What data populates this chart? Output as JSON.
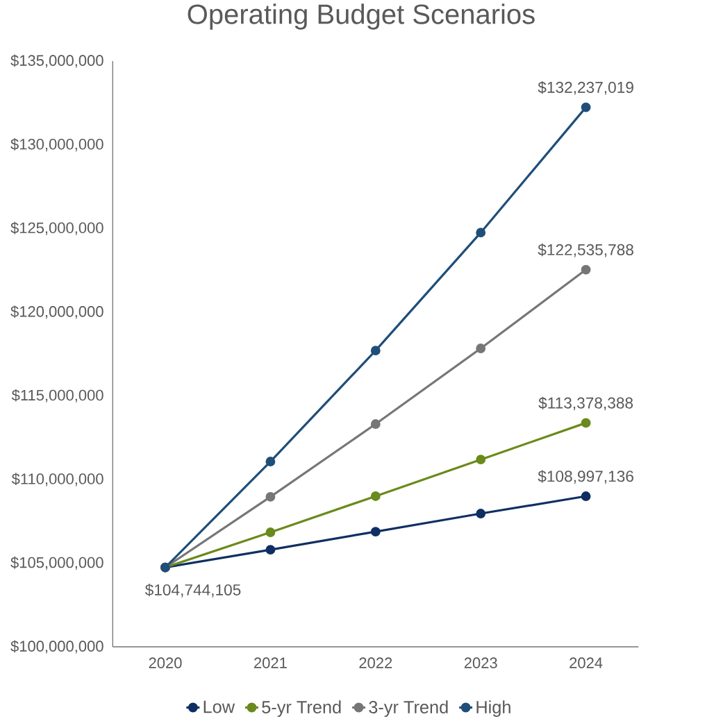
{
  "chart_data": {
    "type": "line",
    "title": "Operating Budget Scenarios",
    "categories": [
      "2020",
      "2021",
      "2022",
      "2023",
      "2024"
    ],
    "series": [
      {
        "name": "Low",
        "color": "#0f2f63",
        "values": [
          104744105,
          105800000,
          106880000,
          107960000,
          108997136
        ],
        "value_labels": [
          "$104,744,105",
          null,
          null,
          null,
          "$108,997,136"
        ]
      },
      {
        "name": "5-yr Trend",
        "color": "#6a8a1c",
        "values": [
          104744105,
          106840000,
          109000000,
          111190000,
          113378388
        ],
        "value_labels": [
          null,
          null,
          null,
          null,
          "$113,378,388"
        ]
      },
      {
        "name": "3-yr Trend",
        "color": "#767676",
        "values": [
          104744105,
          108960000,
          113310000,
          117830000,
          122535788
        ],
        "value_labels": [
          null,
          null,
          null,
          null,
          "$122,535,788"
        ]
      },
      {
        "name": "High",
        "color": "#1f4e79",
        "values": [
          104744105,
          111070000,
          117700000,
          124750000,
          132237019
        ],
        "value_labels": [
          null,
          null,
          null,
          null,
          "$132,237,019"
        ]
      }
    ],
    "ylim": [
      100000000,
      135000000
    ],
    "yticks": [
      {
        "value": 100000000,
        "label": "$100,000,000"
      },
      {
        "value": 105000000,
        "label": "$105,000,000"
      },
      {
        "value": 110000000,
        "label": "$110,000,000"
      },
      {
        "value": 115000000,
        "label": "$115,000,000"
      },
      {
        "value": 120000000,
        "label": "$120,000,000"
      },
      {
        "value": 125000000,
        "label": "$125,000,000"
      },
      {
        "value": 130000000,
        "label": "$130,000,000"
      },
      {
        "value": 135000000,
        "label": "$135,000,000"
      }
    ],
    "grid": false,
    "legend": "bottom",
    "marker": "circle",
    "line_style": "solid"
  }
}
